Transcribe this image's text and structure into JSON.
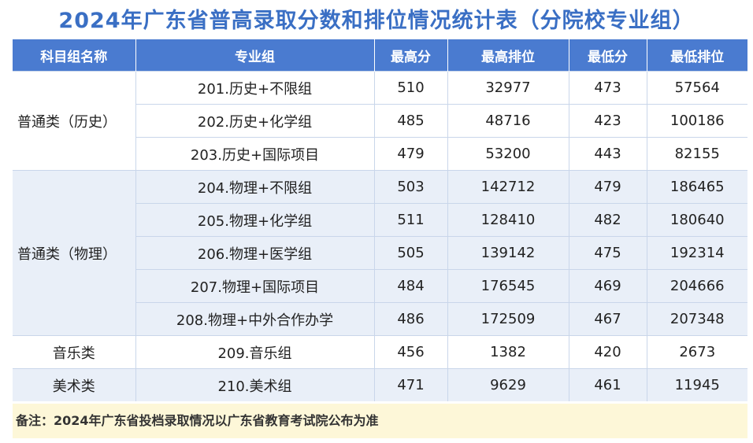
{
  "title": "2024年广东省普高录取分数和排位情况统计表（分院校专业组）",
  "columns": [
    "科目组名称",
    "专业组",
    "最高分",
    "最高排位",
    "最低分",
    "最低排位"
  ],
  "groups": [
    {
      "category": "普通类（历史）",
      "rows": [
        {
          "major": "201.历史+不限组",
          "max_score": "510",
          "max_rank": "32977",
          "min_score": "473",
          "min_rank": "57564"
        },
        {
          "major": "202.历史+化学组",
          "max_score": "485",
          "max_rank": "48716",
          "min_score": "423",
          "min_rank": "100186"
        },
        {
          "major": "203.历史+国际项目",
          "max_score": "479",
          "max_rank": "53200",
          "min_score": "443",
          "min_rank": "82155"
        }
      ]
    },
    {
      "category": "普通类（物理）",
      "rows": [
        {
          "major": "204.物理+不限组",
          "max_score": "503",
          "max_rank": "142712",
          "min_score": "479",
          "min_rank": "186465"
        },
        {
          "major": "205.物理+化学组",
          "max_score": "511",
          "max_rank": "128410",
          "min_score": "482",
          "min_rank": "180640"
        },
        {
          "major": "206.物理+医学组",
          "max_score": "505",
          "max_rank": "139142",
          "min_score": "475",
          "min_rank": "192314"
        },
        {
          "major": "207.物理+国际项目",
          "max_score": "484",
          "max_rank": "176545",
          "min_score": "469",
          "min_rank": "204666"
        },
        {
          "major": "208.物理+中外合作办学",
          "max_score": "486",
          "max_rank": "172509",
          "min_score": "467",
          "min_rank": "207348"
        }
      ]
    },
    {
      "category": "音乐类",
      "rows": [
        {
          "major": "209.音乐组",
          "max_score": "456",
          "max_rank": "1382",
          "min_score": "420",
          "min_rank": "2673"
        }
      ]
    },
    {
      "category": "美术类",
      "rows": [
        {
          "major": "210.美术组",
          "max_score": "471",
          "max_rank": "9629",
          "min_score": "461",
          "min_rank": "11945"
        }
      ]
    }
  ],
  "note": "备注：2024年广东省投档录取情况以广东省教育考试院公布为准"
}
